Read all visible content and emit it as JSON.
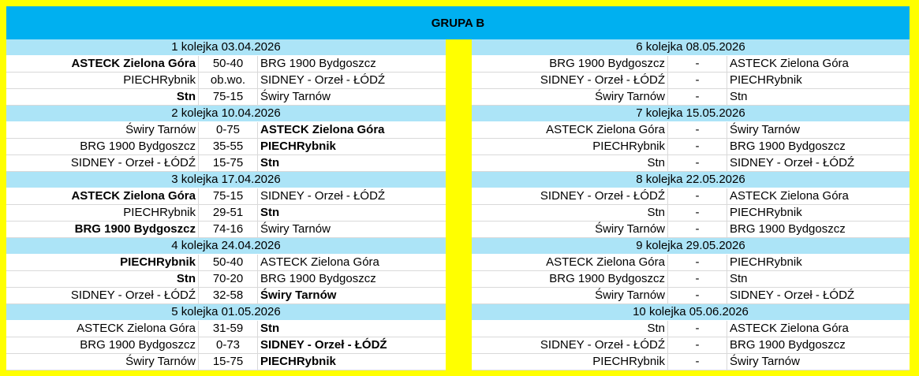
{
  "title": "GRUPA B",
  "left": [
    {
      "round": "1 kolejka 03.04.2026",
      "matches": [
        {
          "home": "ASTECK Zielona Góra",
          "score": "50-40",
          "away": "BRG 1900 Bydgoszcz",
          "winner": "home"
        },
        {
          "home": "PIECHRybnik",
          "score": "ob.wo.",
          "away": "SIDNEY - Orzeł - ŁÓDŹ",
          "winner": ""
        },
        {
          "home": "Stn",
          "score": "75-15",
          "away": "Świry Tarnów",
          "winner": "home"
        }
      ]
    },
    {
      "round": "2 kolejka 10.04.2026",
      "matches": [
        {
          "home": "Świry Tarnów",
          "score": "0-75",
          "away": "ASTECK Zielona Góra",
          "winner": "away"
        },
        {
          "home": "BRG 1900 Bydgoszcz",
          "score": "35-55",
          "away": "PIECHRybnik",
          "winner": "away"
        },
        {
          "home": "SIDNEY - Orzeł - ŁÓDŹ",
          "score": "15-75",
          "away": "Stn",
          "winner": "away"
        }
      ]
    },
    {
      "round": "3 kolejka 17.04.2026",
      "matches": [
        {
          "home": "ASTECK Zielona Góra",
          "score": "75-15",
          "away": "SIDNEY - Orzeł - ŁÓDŹ",
          "winner": "home"
        },
        {
          "home": "PIECHRybnik",
          "score": "29-51",
          "away": "Stn",
          "winner": "away"
        },
        {
          "home": "BRG 1900 Bydgoszcz",
          "score": "74-16",
          "away": "Świry Tarnów",
          "winner": "home"
        }
      ]
    },
    {
      "round": "4 kolejka 24.04.2026",
      "matches": [
        {
          "home": "PIECHRybnik",
          "score": "50-40",
          "away": "ASTECK Zielona Góra",
          "winner": "home"
        },
        {
          "home": "Stn",
          "score": "70-20",
          "away": "BRG 1900 Bydgoszcz",
          "winner": "home"
        },
        {
          "home": "SIDNEY - Orzeł - ŁÓDŹ",
          "score": "32-58",
          "away": "Świry Tarnów",
          "winner": "away"
        }
      ]
    },
    {
      "round": "5 kolejka 01.05.2026",
      "matches": [
        {
          "home": "ASTECK Zielona Góra",
          "score": "31-59",
          "away": "Stn",
          "winner": "away"
        },
        {
          "home": "BRG 1900 Bydgoszcz",
          "score": "0-73",
          "away": "SIDNEY - Orzeł - ŁÓDŹ",
          "winner": "away"
        },
        {
          "home": "Świry Tarnów",
          "score": "15-75",
          "away": "PIECHRybnik",
          "winner": "away"
        }
      ]
    }
  ],
  "right": [
    {
      "round": "6 kolejka 08.05.2026",
      "matches": [
        {
          "home": "BRG 1900 Bydgoszcz",
          "score": "-",
          "away": "ASTECK Zielona Góra",
          "winner": ""
        },
        {
          "home": "SIDNEY - Orzeł - ŁÓDŹ",
          "score": "-",
          "away": "PIECHRybnik",
          "winner": ""
        },
        {
          "home": "Świry Tarnów",
          "score": "-",
          "away": "Stn",
          "winner": ""
        }
      ]
    },
    {
      "round": "7 kolejka 15.05.2026",
      "matches": [
        {
          "home": "ASTECK Zielona Góra",
          "score": "-",
          "away": "Świry Tarnów",
          "winner": ""
        },
        {
          "home": "PIECHRybnik",
          "score": "-",
          "away": "BRG 1900 Bydgoszcz",
          "winner": ""
        },
        {
          "home": "Stn",
          "score": "-",
          "away": "SIDNEY - Orzeł - ŁÓDŹ",
          "winner": ""
        }
      ]
    },
    {
      "round": "8 kolejka 22.05.2026",
      "matches": [
        {
          "home": "SIDNEY - Orzeł - ŁÓDŹ",
          "score": "-",
          "away": "ASTECK Zielona Góra",
          "winner": ""
        },
        {
          "home": "Stn",
          "score": "-",
          "away": "PIECHRybnik",
          "winner": ""
        },
        {
          "home": "Świry Tarnów",
          "score": "-",
          "away": "BRG 1900 Bydgoszcz",
          "winner": ""
        }
      ]
    },
    {
      "round": "9 kolejka 29.05.2026",
      "matches": [
        {
          "home": "ASTECK Zielona Góra",
          "score": "-",
          "away": "PIECHRybnik",
          "winner": ""
        },
        {
          "home": "BRG 1900 Bydgoszcz",
          "score": "-",
          "away": "Stn",
          "winner": ""
        },
        {
          "home": "Świry Tarnów",
          "score": "-",
          "away": "SIDNEY - Orzeł - ŁÓDŹ",
          "winner": ""
        }
      ]
    },
    {
      "round": "10 kolejka 05.06.2026",
      "matches": [
        {
          "home": "Stn",
          "score": "-",
          "away": "ASTECK Zielona Góra",
          "winner": ""
        },
        {
          "home": "SIDNEY - Orzeł - ŁÓDŹ",
          "score": "-",
          "away": "BRG 1900 Bydgoszcz",
          "winner": ""
        },
        {
          "home": "PIECHRybnik",
          "score": "-",
          "away": "Świry Tarnów",
          "winner": ""
        }
      ]
    }
  ]
}
